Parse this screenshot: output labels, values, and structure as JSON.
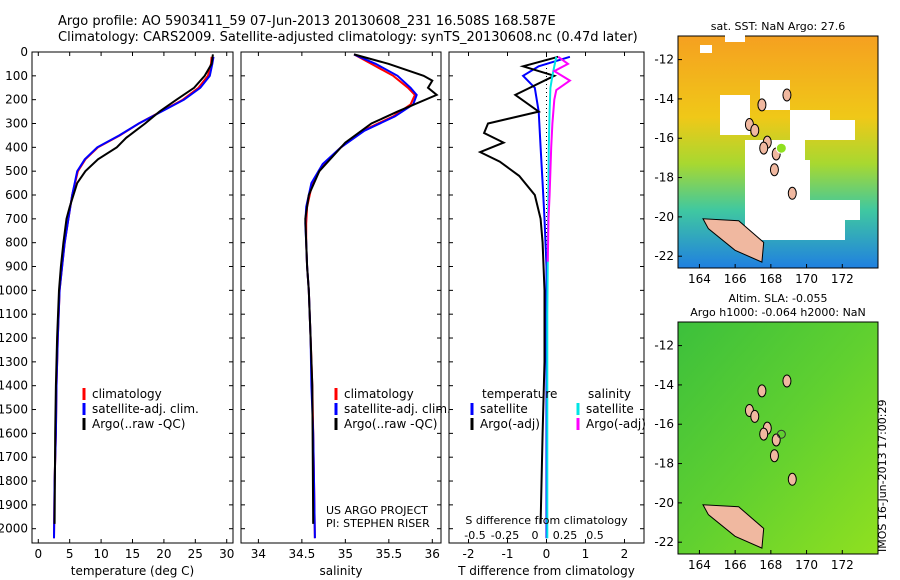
{
  "header": {
    "title_line1": "Argo profile: AO 5903411_59 07-Jun-2013 20130608_231 16.508S 168.587E",
    "title_line2": "Climatology: CARS2009. Satellite-adjusted climatology: synTS_20130608.nc (0.47d later)"
  },
  "colors": {
    "climatology": "#ff0000",
    "satellite": "#0000ff",
    "argo": "#000000",
    "sal_satellite": "#00e5e5",
    "sal_argo": "#ff00ff"
  },
  "chart_data": [
    {
      "type": "line",
      "panel": "temperature",
      "xlabel": "temperature (deg C)",
      "ylabel": "",
      "xlim": [
        -1,
        31
      ],
      "ylim": [
        2060,
        0
      ],
      "xticks": [
        0,
        5,
        10,
        15,
        20,
        25,
        30
      ],
      "yticks": [
        0,
        100,
        200,
        300,
        400,
        500,
        600,
        700,
        800,
        900,
        1000,
        1100,
        1200,
        1300,
        1400,
        1500,
        1600,
        1700,
        1800,
        1900,
        2000
      ],
      "legend": [
        "climatology",
        "satellite-adj. clim.",
        "Argo(..raw -QC)"
      ],
      "series": [
        {
          "name": "climatology",
          "color": "#ff0000",
          "x": [
            27.6,
            27.5,
            27.0,
            25.5,
            23.0,
            19.5,
            16.0,
            13.0,
            9.5,
            7.5,
            6.3,
            5.4,
            4.8,
            4.2,
            3.8,
            3.4,
            3.1,
            2.9,
            2.8,
            2.6,
            2.5
          ],
          "y": [
            20,
            50,
            100,
            150,
            200,
            250,
            300,
            350,
            400,
            450,
            500,
            600,
            700,
            800,
            900,
            1000,
            1200,
            1400,
            1600,
            1800,
            2040
          ]
        },
        {
          "name": "satellite-adj. clim.",
          "color": "#0000ff",
          "x": [
            27.9,
            27.7,
            27.3,
            25.8,
            23.2,
            19.6,
            16.0,
            12.9,
            9.4,
            7.4,
            6.2,
            5.4,
            4.8,
            4.2,
            3.8,
            3.4,
            3.1,
            2.9,
            2.8,
            2.6,
            2.5
          ],
          "y": [
            20,
            50,
            100,
            150,
            200,
            250,
            300,
            350,
            400,
            450,
            500,
            600,
            700,
            800,
            900,
            1000,
            1200,
            1400,
            1600,
            1800,
            2040
          ]
        },
        {
          "name": "Argo(..raw -QC)",
          "color": "#000000",
          "x": [
            27.8,
            27.6,
            26.5,
            24.8,
            22.0,
            19.3,
            17.0,
            15.5,
            14.0,
            12.5,
            9.5,
            7.5,
            6.2,
            5.0,
            4.5,
            4.0,
            3.6,
            3.3,
            3.0,
            2.8,
            2.7,
            2.6
          ],
          "y": [
            10,
            50,
            100,
            150,
            200,
            250,
            300,
            330,
            360,
            400,
            450,
            500,
            550,
            650,
            700,
            800,
            900,
            1000,
            1200,
            1400,
            1600,
            1980
          ]
        }
      ]
    },
    {
      "type": "line",
      "panel": "salinity",
      "xlabel": "salinity",
      "ylabel": "",
      "xlim": [
        33.8,
        36.1
      ],
      "ylim": [
        2060,
        0
      ],
      "xticks": [
        34,
        34.5,
        35,
        35.5,
        36
      ],
      "xticklabels": [
        "34",
        "34.5",
        "35",
        "35.5",
        "36"
      ],
      "legend": [
        "climatology",
        "satellite-adj. clim.",
        "Argo(..raw -QC)"
      ],
      "annotations": [
        "US ARGO PROJECT",
        "PI: STEPHEN RISER"
      ],
      "series": [
        {
          "name": "climatology",
          "color": "#ff0000",
          "x": [
            35.1,
            35.3,
            35.55,
            35.72,
            35.8,
            35.75,
            35.55,
            35.2,
            34.95,
            34.75,
            34.62,
            34.56,
            34.55,
            34.55,
            34.56,
            34.58,
            34.6,
            34.62,
            34.63,
            34.64,
            34.65
          ],
          "y": [
            10,
            50,
            100,
            150,
            180,
            220,
            270,
            330,
            400,
            470,
            550,
            650,
            720,
            800,
            900,
            1000,
            1200,
            1400,
            1600,
            1800,
            2040
          ]
        },
        {
          "name": "satellite-adj. clim.",
          "color": "#0000ff",
          "x": [
            35.1,
            35.35,
            35.6,
            35.75,
            35.82,
            35.78,
            35.57,
            35.22,
            34.95,
            34.74,
            34.61,
            34.55,
            34.54,
            34.55,
            34.56,
            34.58,
            34.6,
            34.61,
            34.63,
            34.64,
            34.65
          ],
          "y": [
            10,
            50,
            100,
            150,
            180,
            220,
            270,
            330,
            400,
            470,
            550,
            650,
            720,
            800,
            900,
            1000,
            1200,
            1400,
            1600,
            1800,
            2040
          ]
        },
        {
          "name": "Argo(..raw -QC)",
          "color": "#000000",
          "x": [
            35.1,
            35.5,
            35.9,
            36.0,
            35.95,
            36.05,
            35.6,
            35.3,
            35.0,
            34.7,
            34.58,
            34.54,
            34.55,
            34.56,
            34.58,
            34.6,
            34.62,
            34.63
          ],
          "y": [
            10,
            50,
            100,
            120,
            150,
            180,
            250,
            300,
            380,
            500,
            600,
            700,
            800,
            900,
            1000,
            1200,
            1400,
            1980
          ]
        }
      ]
    },
    {
      "type": "line",
      "panel": "difference",
      "xlabel": "T difference from climatology",
      "xlabel_top": "S difference from climatology",
      "ylabel": "",
      "xlim": [
        -2.5,
        2.5
      ],
      "ylim": [
        2060,
        0
      ],
      "xticks": [
        -2,
        -1,
        0,
        1,
        2
      ],
      "xticks_top": [
        -0.5,
        -0.25,
        0,
        0.25,
        0.5
      ],
      "xticklabels_top": [
        "-0.5",
        "-0.25",
        "0",
        "0.25",
        "0.5"
      ],
      "legend": [
        "temperature",
        "satellite",
        "Argo(-adj)",
        "salinity",
        "satellite",
        "Argo(-adj)"
      ],
      "series": [
        {
          "name": "satellite",
          "color": "#0000ff",
          "x": [
            0.6,
            -0.2,
            -0.6,
            -0.3,
            -0.2,
            -0.15,
            -0.1,
            -0.05,
            0,
            0,
            0,
            0,
            0,
            0,
            0
          ],
          "y": [
            20,
            60,
            100,
            150,
            250,
            400,
            550,
            700,
            900,
            1100,
            1300,
            1500,
            1700,
            1900,
            2040
          ]
        },
        {
          "name": "Argo(-adj)",
          "color": "#000000",
          "x": [
            0.3,
            -0.6,
            0.2,
            -0.8,
            -0.2,
            -1.5,
            -1.6,
            -1.1,
            -1.7,
            -1.2,
            -0.7,
            -0.3,
            -0.15,
            -0.1,
            -0.05,
            -0.05,
            -0.1,
            -0.15
          ],
          "y": [
            20,
            60,
            100,
            180,
            250,
            300,
            340,
            380,
            420,
            460,
            520,
            600,
            700,
            800,
            1000,
            1300,
            1600,
            1980
          ]
        },
        {
          "name": "satellite",
          "color": "#00e5e5",
          "x": [
            0.25,
            0.2,
            0.15,
            0.1,
            0.08,
            0.06,
            0.05,
            0.04,
            0.03,
            0.02,
            0.02,
            0.02,
            0.02,
            0.02,
            0.02
          ],
          "y": [
            20,
            60,
            100,
            150,
            250,
            400,
            550,
            700,
            900,
            1100,
            1300,
            1500,
            1700,
            1900,
            2040
          ]
        },
        {
          "name": "Argo(-adj)",
          "color": "#ff00ff",
          "x": [
            0.3,
            0.55,
            0.2,
            0.6,
            0.25,
            0.2,
            0.15,
            0.12,
            0.1,
            0.08,
            0.05,
            0.04,
            0.03
          ],
          "y": [
            20,
            50,
            80,
            120,
            160,
            200,
            300,
            400,
            500,
            600,
            700,
            800,
            880
          ]
        }
      ]
    }
  ],
  "maps": {
    "sst": {
      "title": "sat. SST: NaN Argo: 27.6",
      "xticks": [
        164,
        166,
        168,
        170,
        172
      ],
      "yticks": [
        -12,
        -14,
        -16,
        -18,
        -20,
        -22
      ]
    },
    "sla": {
      "title1": "Altim. SLA: -0.055",
      "title2": "Argo h1000: -0.064 h2000: NaN",
      "xticks": [
        164,
        166,
        168,
        170,
        172
      ],
      "yticks": [
        -12,
        -14,
        -16,
        -18,
        -20,
        -22
      ]
    }
  },
  "footer": {
    "side_label": "IMOS 16-Jun-2013 17:00:29"
  }
}
